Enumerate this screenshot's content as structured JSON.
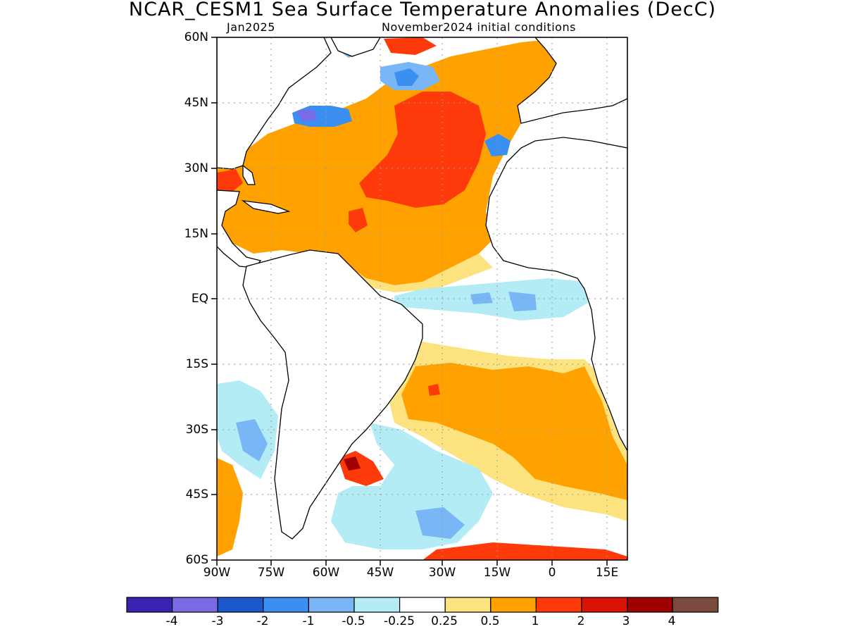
{
  "title": "NCAR_CESM1 Sea Surface Temperature Anomalies (DecC)",
  "subtitle_left": "Jan2025",
  "subtitle_right": "November2024 initial conditions",
  "lat_labels": [
    "60N",
    "45N",
    "30N",
    "15N",
    "EQ",
    "15S",
    "30S",
    "45S",
    "60S"
  ],
  "lon_labels": [
    "90W",
    "75W",
    "60W",
    "45W",
    "30W",
    "15W",
    "0",
    "15E"
  ],
  "colorbar": {
    "colors": [
      "#3a22b0",
      "#7a6ae6",
      "#1c58cc",
      "#3a8ff0",
      "#78b6f5",
      "#b3ecf5",
      "#ffffff",
      "#fde37f",
      "#ffa200",
      "#ff3a0a",
      "#db1208",
      "#a00000",
      "#7a4a3c"
    ],
    "labels": [
      "-4",
      "-3",
      "-2",
      "-1",
      "-0.5",
      "-0.25",
      "0.25",
      "0.5",
      "1",
      "2",
      "3",
      "4"
    ]
  }
}
